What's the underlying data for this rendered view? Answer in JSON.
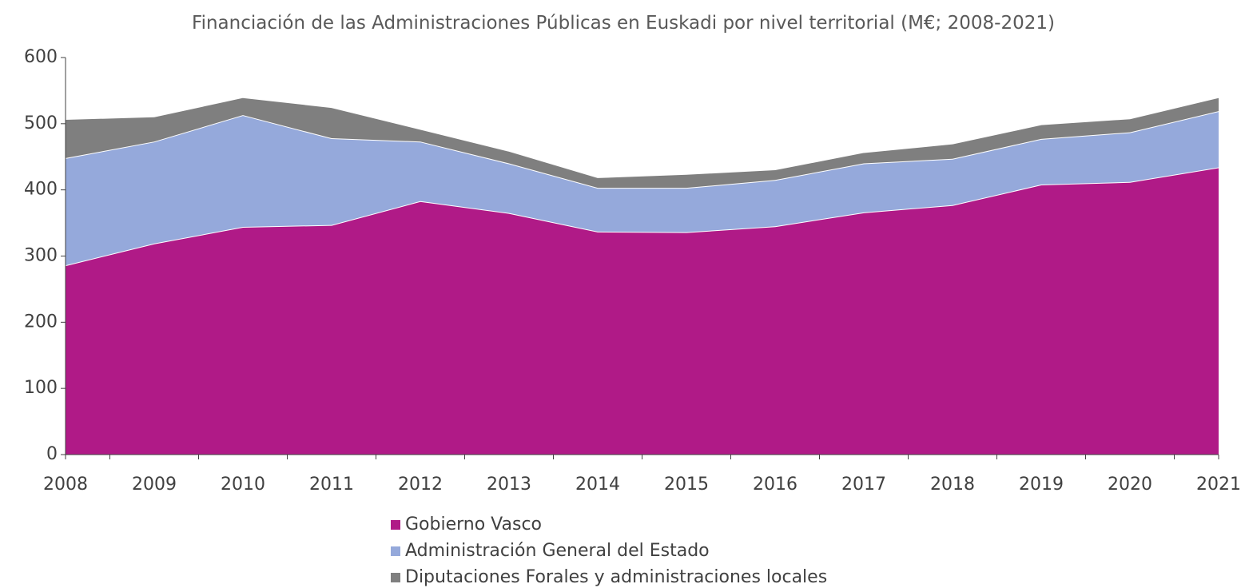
{
  "chart_data": {
    "type": "area",
    "stacked": true,
    "title": "Financiación de las Administraciones Públicas en Euskadi por nivel territorial (M€; 2008-2021)",
    "categories": [
      "2008",
      "2009",
      "2010",
      "2011",
      "2012",
      "2013",
      "2014",
      "2015",
      "2016",
      "2017",
      "2018",
      "2019",
      "2020",
      "2021"
    ],
    "series": [
      {
        "name": "Gobierno Vasco",
        "color": "#b01a87",
        "values": [
          286,
          319,
          344,
          347,
          383,
          365,
          337,
          336,
          345,
          366,
          377,
          408,
          412,
          434
        ]
      },
      {
        "name": "Administración General del Estado",
        "color": "#95a9db",
        "values": [
          162,
          154,
          169,
          131,
          90,
          75,
          66,
          67,
          70,
          74,
          70,
          69,
          75,
          85
        ]
      },
      {
        "name": "Diputaciones Forales y administraciones locales",
        "color": "#7f7f7f",
        "values": [
          59,
          38,
          27,
          47,
          19,
          19,
          16,
          21,
          16,
          17,
          23,
          22,
          21,
          21
        ]
      }
    ],
    "ylim": [
      0,
      600
    ],
    "yticks": [
      0,
      100,
      200,
      300,
      400,
      500,
      600
    ],
    "legend": "bottom"
  }
}
